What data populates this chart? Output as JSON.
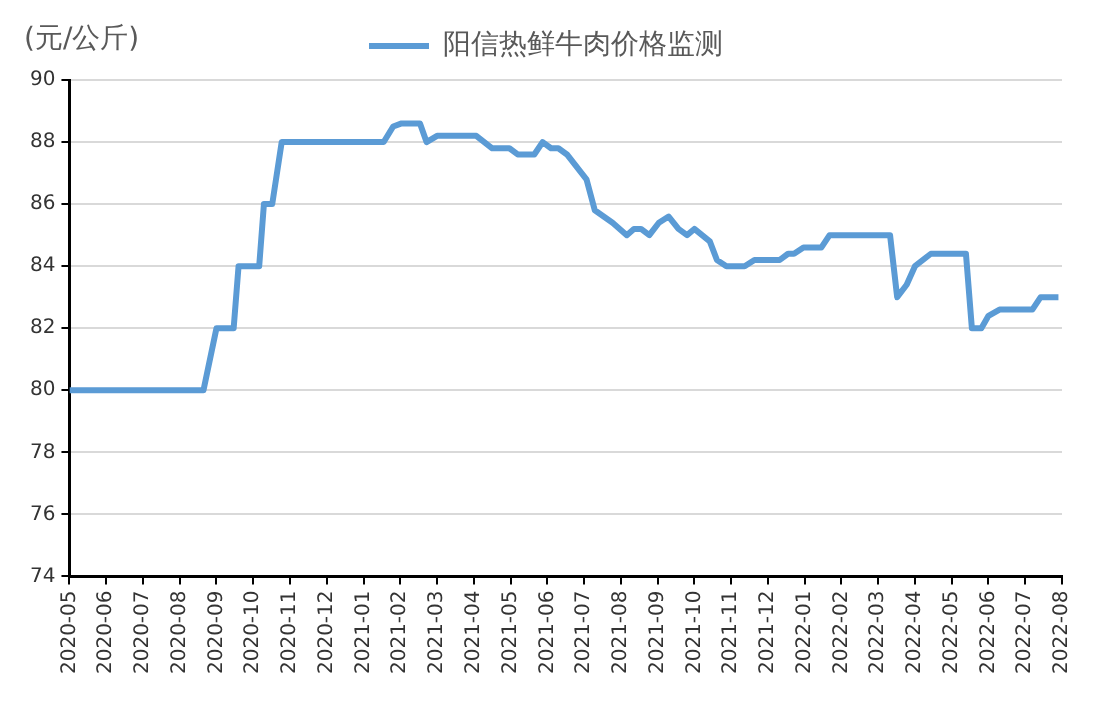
{
  "chart_data": {
    "type": "line",
    "ylabel": "(元/公斤)",
    "x": [
      "2020-05-01",
      "2020-08-21",
      "2020-09-01",
      "2020-09-15",
      "2020-09-19",
      "2020-10-06",
      "2020-10-10",
      "2020-10-17",
      "2020-10-25",
      "2021-01-18",
      "2021-01-26",
      "2021-02-02",
      "2021-02-16",
      "2021-02-21",
      "2021-03-01",
      "2021-04-03",
      "2021-04-16",
      "2021-04-30",
      "2021-05-07",
      "2021-05-21",
      "2021-05-28",
      "2021-06-04",
      "2021-06-10",
      "2021-06-17",
      "2021-07-03",
      "2021-07-10",
      "2021-07-25",
      "2021-08-06",
      "2021-08-12",
      "2021-08-18",
      "2021-08-25",
      "2021-09-02",
      "2021-09-10",
      "2021-09-18",
      "2021-09-25",
      "2021-10-01",
      "2021-10-14",
      "2021-10-20",
      "2021-10-28",
      "2021-11-12",
      "2021-11-20",
      "2021-12-11",
      "2021-12-18",
      "2021-12-23",
      "2021-12-31",
      "2022-01-15",
      "2022-01-22",
      "2022-03-11",
      "2022-03-17",
      "2022-03-25",
      "2022-04-01",
      "2022-04-14",
      "2022-05-13",
      "2022-05-18",
      "2022-05-26",
      "2022-06-01",
      "2022-06-10",
      "2022-07-07",
      "2022-07-14",
      "2022-07-29"
    ],
    "series": [
      {
        "name": "阳信热鲜牛肉价格监测",
        "color": "#5b9bd5",
        "values": [
          80,
          80,
          82,
          82,
          84,
          84,
          86,
          86,
          88,
          88,
          88.5,
          88.6,
          88.6,
          88,
          88.2,
          88.2,
          87.8,
          87.8,
          87.6,
          87.6,
          88,
          87.8,
          87.8,
          87.6,
          86.8,
          85.8,
          85.4,
          85,
          85.2,
          85.2,
          85,
          85.4,
          85.6,
          85.2,
          85,
          85.2,
          84.8,
          84.2,
          84,
          84,
          84.2,
          84.2,
          84.4,
          84.4,
          84.6,
          84.6,
          85,
          85,
          83,
          83.4,
          84,
          84.4,
          84.4,
          82,
          82,
          82.4,
          82.6,
          82.6,
          83,
          83
        ]
      }
    ],
    "xlim": [
      "2020-05",
      "2022-08"
    ],
    "xticks": [
      "2020-05",
      "2020-06",
      "2020-07",
      "2020-08",
      "2020-09",
      "2020-10",
      "2020-11",
      "2020-12",
      "2021-01",
      "2021-02",
      "2021-03",
      "2021-04",
      "2021-05",
      "2021-06",
      "2021-07",
      "2021-08",
      "2021-09",
      "2021-10",
      "2021-11",
      "2021-12",
      "2022-01",
      "2022-02",
      "2022-03",
      "2022-04",
      "2022-05",
      "2022-06",
      "2022-07",
      "2022-08"
    ],
    "ylim": [
      74,
      90
    ],
    "yticks": [
      74,
      76,
      78,
      80,
      82,
      84,
      86,
      88,
      90
    ],
    "grid": "y",
    "legend": "top",
    "marker": "none",
    "line_style": "solid"
  }
}
